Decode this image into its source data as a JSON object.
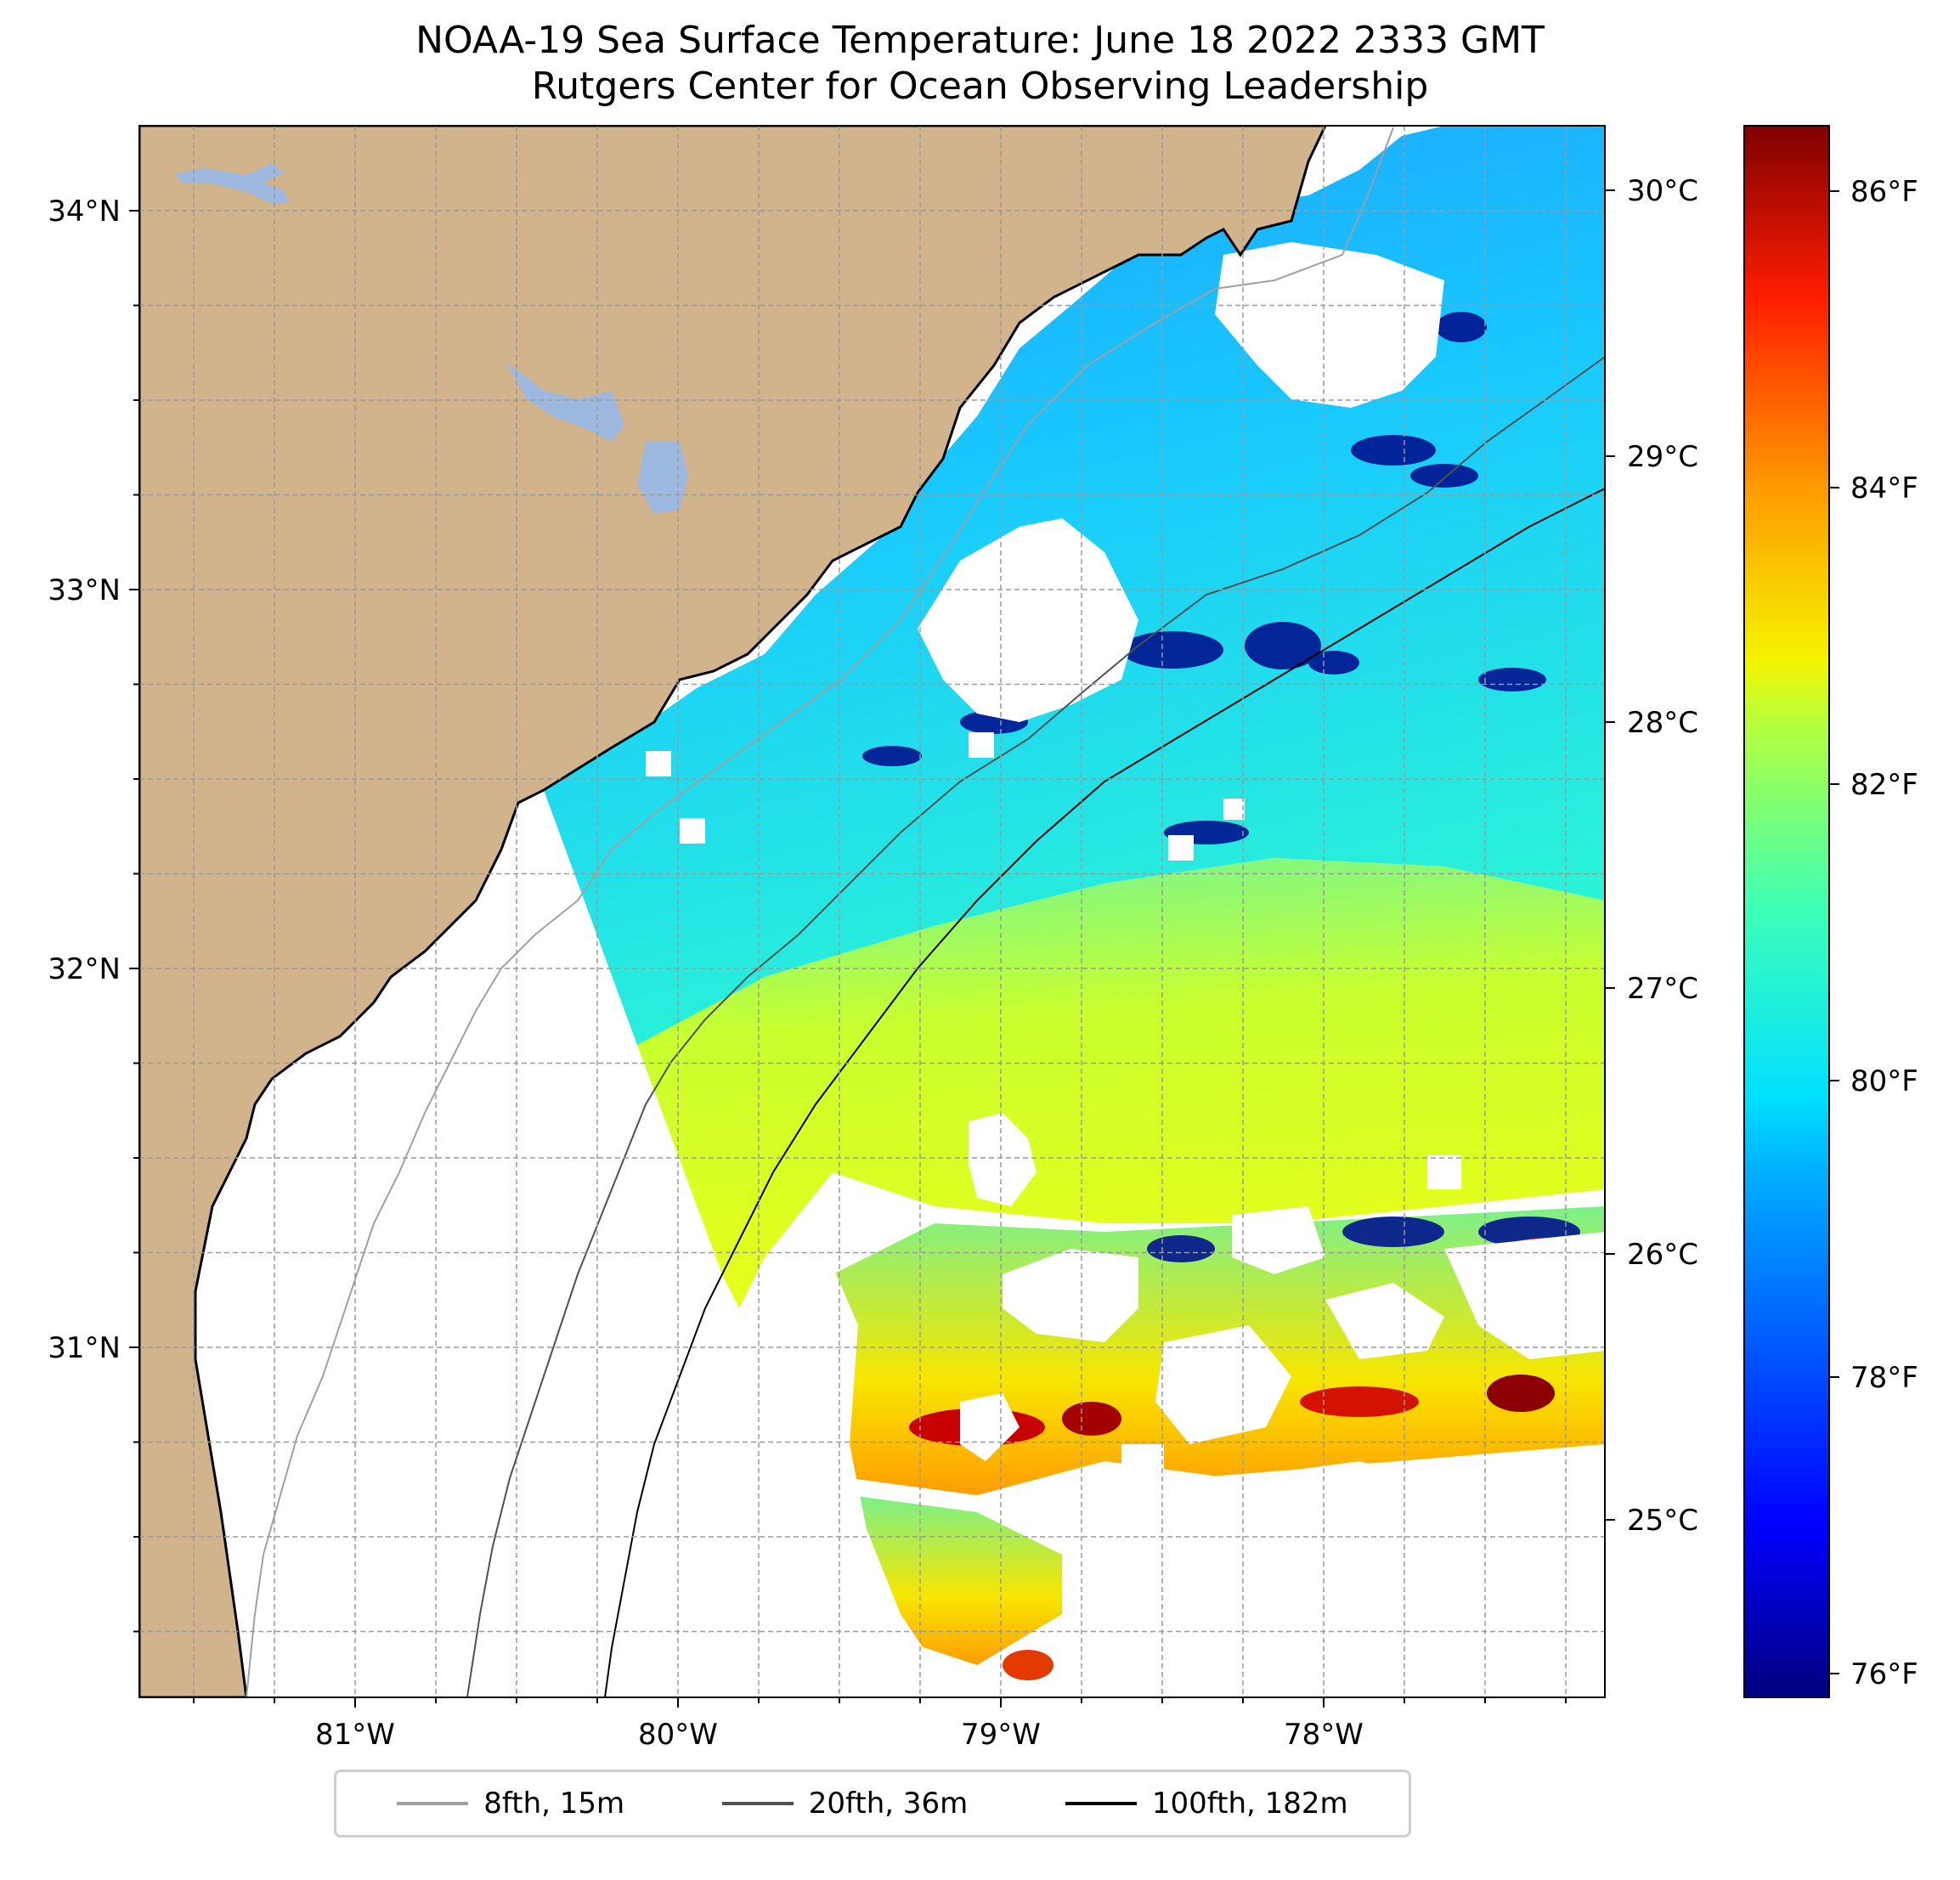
{
  "title": "NOAA-19 Sea Surface Temperature: June 18 2022 2333 GMT",
  "subtitle": "Rutgers Center for Ocean Observing Leadership",
  "map": {
    "lon_ticks": [
      "81°W",
      "80°W",
      "79°W",
      "78°W"
    ],
    "lat_ticks": [
      "34°N",
      "33°N",
      "32°N",
      "31°N"
    ],
    "celsius_ticks": [
      "30°C",
      "29°C",
      "28°C",
      "27°C",
      "26°C",
      "25°C"
    ],
    "land_color": "#d2b48c",
    "water_body_color": "#9db9e0",
    "gridlines": true
  },
  "colorbar": {
    "colormap": "jet",
    "ticks": [
      "86°F",
      "84°F",
      "82°F",
      "80°F",
      "78°F",
      "76°F"
    ]
  },
  "legend": [
    {
      "label": "8fth, 15m",
      "color": "#a0a0a0"
    },
    {
      "label": "20fth, 36m",
      "color": "#505050"
    },
    {
      "label": "100fth, 182m",
      "color": "#000000"
    }
  ]
}
